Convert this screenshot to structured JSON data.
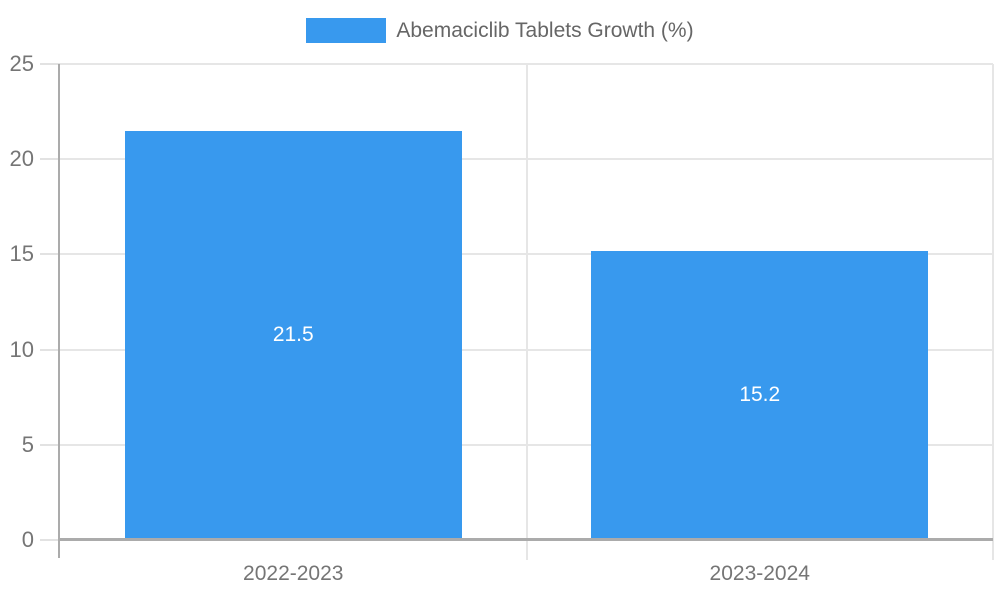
{
  "chart_data": {
    "type": "bar",
    "legend": "Abemaciclib Tablets Growth (%)",
    "legend_position": "top-center",
    "categories": [
      "2022-2023",
      "2023-2024"
    ],
    "values": [
      21.5,
      15.2
    ],
    "value_labels": [
      "21.5",
      "15.2"
    ],
    "ytick_labels": [
      "0",
      "5",
      "10",
      "15",
      "20",
      "25"
    ],
    "yticks": [
      0,
      5,
      10,
      15,
      20,
      25
    ],
    "ylim": [
      0,
      25
    ],
    "grid": true,
    "xlabel": "",
    "ylabel": "",
    "colors": {
      "bar": "#3899EE",
      "grid": "#e6e6e6",
      "axis": "#ababab",
      "tick_label": "#757575",
      "legend_text": "#666666",
      "value_label": "#ffffff",
      "background": "#ffffff"
    }
  }
}
